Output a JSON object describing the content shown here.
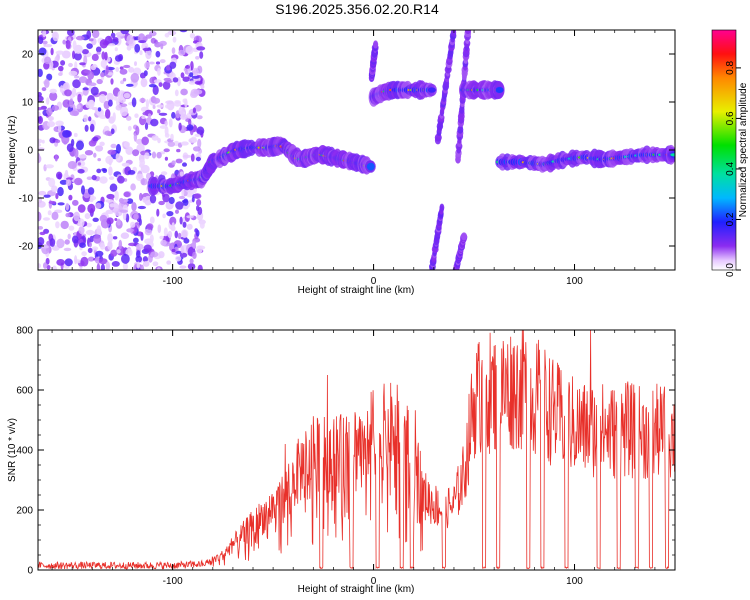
{
  "title": "S196.2025.356.02.20.R14",
  "chart_data": [
    {
      "type": "heatmap",
      "xlabel": "Height of straight line (km)",
      "ylabel": "Frequency (Hz)",
      "xlim": [
        -167,
        150
      ],
      "ylim": [
        -25,
        25
      ],
      "xticks": [
        -100,
        0,
        100
      ],
      "yticks": [
        -20,
        -10,
        0,
        10,
        20
      ],
      "colorbar": {
        "label": "Normalized spectral amplitude",
        "ticks": [
          0.0,
          0.2,
          0.4,
          0.6,
          0.8
        ],
        "range": [
          0,
          0.95
        ]
      },
      "noise_region": {
        "x": [
          -167,
          -85
        ],
        "y": [
          -25,
          25
        ]
      },
      "tracks": [
        {
          "x": [
            -110,
            -100,
            -92,
            -85,
            -80,
            -75,
            -68,
            -60,
            -52,
            -45,
            -40,
            -36,
            -32,
            -28,
            -25,
            -20,
            -15,
            -10,
            -5,
            -1
          ],
          "y": [
            -7.5,
            -7.5,
            -6.5,
            -6.0,
            -2.5,
            -1.5,
            0.0,
            0.5,
            0.5,
            1.0,
            -1.0,
            -2.0,
            -1.5,
            -1.0,
            -1.0,
            -1.5,
            -2.0,
            -2.5,
            -3.0,
            -3.5
          ]
        },
        {
          "x": [
            0,
            5,
            10,
            20,
            30
          ],
          "y": [
            11,
            12,
            12.5,
            12.5,
            12.5
          ]
        },
        {
          "x": [
            45,
            52,
            60,
            63
          ],
          "y": [
            12.5,
            12.5,
            12.5,
            12.5
          ]
        },
        {
          "x": [
            63,
            75,
            85,
            95,
            105,
            115,
            125,
            135,
            145,
            150
          ],
          "y": [
            -2.5,
            -2.5,
            -3.0,
            -2.0,
            -1.5,
            -2.0,
            -1.5,
            -1.0,
            -1.0,
            -1.0
          ]
        }
      ],
      "vertical_streaks": [
        {
          "x": [
            32,
            40
          ],
          "y": [
            2,
            25
          ]
        },
        {
          "x": [
            42,
            47
          ],
          "y": [
            -2,
            25
          ]
        },
        {
          "x": [
            29,
            34
          ],
          "y": [
            -25,
            -12
          ]
        },
        {
          "x": [
            41,
            45
          ],
          "y": [
            -25,
            -18
          ]
        },
        {
          "x": [
            -1,
            1
          ],
          "y": [
            15,
            22
          ]
        }
      ]
    },
    {
      "type": "line",
      "xlabel": "Height of straight line (km)",
      "ylabel": "SNR (10 * v/v)",
      "xlim": [
        -167,
        150
      ],
      "ylim": [
        0,
        800
      ],
      "xticks": [
        -100,
        0,
        100
      ],
      "yticks": [
        0,
        200,
        400,
        600,
        800
      ],
      "series_color": "#e8302a",
      "envelope": {
        "x": [
          -167,
          -100,
          -85,
          -75,
          -65,
          -55,
          -45,
          -40,
          -35,
          -30,
          -25,
          -20,
          -15,
          -10,
          -5,
          0,
          5,
          10,
          15,
          20,
          25,
          30,
          35,
          40,
          45,
          50,
          55,
          60,
          65,
          70,
          75,
          80,
          85,
          90,
          95,
          100,
          105,
          110,
          115,
          120,
          125,
          130,
          135,
          140,
          145,
          150
        ],
        "y": [
          15,
          15,
          20,
          50,
          120,
          180,
          240,
          300,
          350,
          380,
          380,
          400,
          380,
          420,
          440,
          460,
          460,
          470,
          440,
          420,
          250,
          220,
          200,
          220,
          320,
          560,
          600,
          590,
          600,
          610,
          600,
          580,
          560,
          520,
          500,
          480,
          470,
          470,
          465,
          460,
          470,
          460,
          455,
          460,
          460,
          450
        ]
      },
      "dropouts": [
        -26,
        -11,
        2,
        14,
        19,
        35,
        55,
        62,
        77,
        84,
        96,
        112,
        122,
        131,
        138,
        146
      ],
      "spikes": [
        [
          -23,
          650
        ],
        [
          -44,
          420
        ],
        [
          -2,
          450
        ],
        [
          54,
          700
        ],
        [
          75,
          720
        ],
        [
          108,
          800
        ]
      ]
    }
  ]
}
